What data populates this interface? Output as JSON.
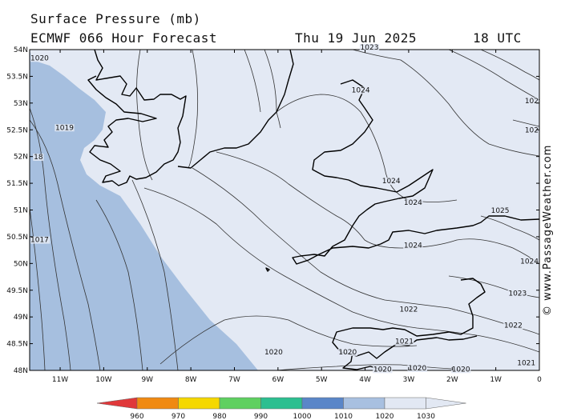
{
  "header": {
    "title": "Surface Pressure (mb)",
    "model": "ECMWF 066 Hour Forecast",
    "date": "Thu 19 Jun 2025",
    "time": "18 UTC"
  },
  "credit": "© www.PassageWeather.com",
  "axes": {
    "lat_labels": [
      "54N",
      "53.5N",
      "53N",
      "52.5N",
      "52N",
      "51.5N",
      "51N",
      "50.5N",
      "50N",
      "49.5N",
      "49N",
      "48.5N",
      "48N"
    ],
    "lon_labels": [
      "11W",
      "10W",
      "9W",
      "8W",
      "7W",
      "6W",
      "5W",
      "4W",
      "3W",
      "2W",
      "1W",
      "0"
    ]
  },
  "isobar_labels": [
    {
      "text": "1020",
      "lon": -11.6,
      "lat": 53.8
    },
    {
      "text": "1019",
      "lon": -10.9,
      "lat": 52.5
    },
    {
      "text": "18",
      "lon": -11.5,
      "lat": 51.95
    },
    {
      "text": "1017",
      "lon": -11.5,
      "lat": 50.4
    },
    {
      "text": "1023",
      "lon": -3.9,
      "lat": 54.0
    },
    {
      "text": "1024",
      "lon": -4.1,
      "lat": 53.2
    },
    {
      "text": "1024",
      "lon": -3.4,
      "lat": 51.5
    },
    {
      "text": "1024",
      "lon": -2.9,
      "lat": 51.1
    },
    {
      "text": "1025",
      "lon": -0.9,
      "lat": 50.95
    },
    {
      "text": "1024",
      "lon": -2.9,
      "lat": 50.3
    },
    {
      "text": "1024",
      "lon": -0.2,
      "lat": 50.0
    },
    {
      "text": "1023",
      "lon": -0.5,
      "lat": 49.4
    },
    {
      "text": "1022",
      "lon": -3.0,
      "lat": 49.1
    },
    {
      "text": "1022",
      "lon": -0.6,
      "lat": 48.8
    },
    {
      "text": "1021",
      "lon": -3.1,
      "lat": 48.5
    },
    {
      "text": "1021",
      "lon": -0.3,
      "lat": 48.1
    },
    {
      "text": "1020",
      "lon": -6.1,
      "lat": 48.3
    },
    {
      "text": "1020",
      "lon": -4.4,
      "lat": 48.3
    },
    {
      "text": "1020",
      "lon": -2.8,
      "lat": 48.0
    },
    {
      "text": "1020",
      "lon": -1.8,
      "lat": 47.98
    },
    {
      "text": "1020",
      "lon": -3.6,
      "lat": 47.98
    },
    {
      "text": "102",
      "lon": 0.0,
      "lat": 53.0
    },
    {
      "text": "102",
      "lon": 0.0,
      "lat": 52.45
    }
  ],
  "legend": {
    "values": [
      "960",
      "970",
      "980",
      "990",
      "1000",
      "1010",
      "1020",
      "1030"
    ],
    "colors": [
      "#e0383a",
      "#f08a12",
      "#f5d800",
      "#5fd060",
      "#2cbf90",
      "#5a86c8",
      "#a8c0e0",
      "#e2e8f3"
    ]
  },
  "fill_colors": {
    "low": "#a6bfdf",
    "high": "#e3e9f4",
    "land_line": "#000000",
    "isobar": "#333333"
  }
}
